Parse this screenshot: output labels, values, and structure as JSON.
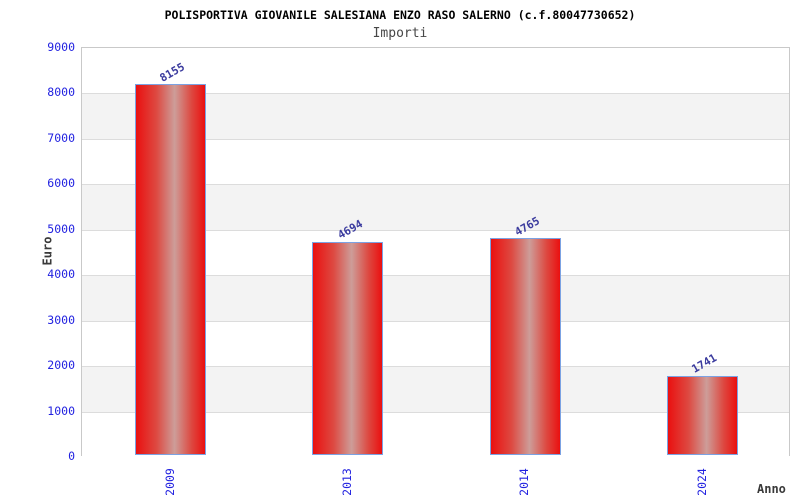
{
  "chart_data": {
    "type": "bar",
    "title": "POLISPORTIVA GIOVANILE SALESIANA ENZO RASO SALERNO (c.f.80047730652)",
    "subtitle": "Importi",
    "xlabel": "Anno",
    "ylabel": "Euro",
    "categories": [
      "2009",
      "2013",
      "2014",
      "2024"
    ],
    "values": [
      8155,
      4694,
      4765,
      1741
    ],
    "ylim": [
      0,
      9000
    ],
    "yticks": [
      0,
      1000,
      2000,
      3000,
      4000,
      5000,
      6000,
      7000,
      8000,
      9000
    ],
    "grid": "horizontal-bands",
    "legend": "none",
    "colors": {
      "tick_label": "#2222e0",
      "value_label": "#3b3b9e",
      "bar_edge": "#ea1010",
      "bar_shade": "#dd4a42",
      "bar_mid": "#cd9d99",
      "bar_border": "#7ba2e3",
      "band_alt": "#f3f3f3",
      "band_main": "#ffffff",
      "grid_line": "#dcdcdc",
      "plot_border": "#c9c9c9",
      "title_color": "#000000",
      "axis_title_color": "#3a3a3a"
    }
  }
}
